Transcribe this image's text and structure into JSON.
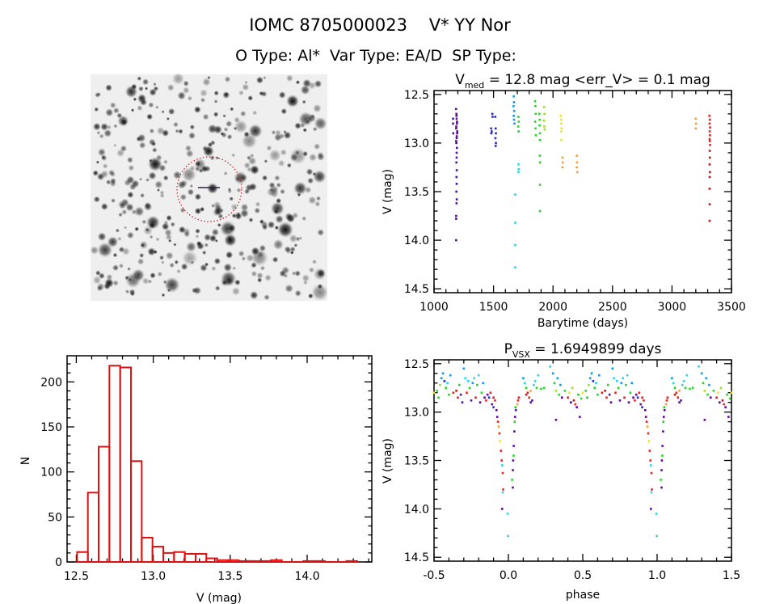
{
  "header": {
    "title_line1": "IOMC 8705000023    V* YY Nor",
    "title_line2": "O Type: Al*  Var Type: EA/D  SP Type:"
  },
  "image_panel": {
    "type": "sky-finder-chart",
    "colormap": "inverted-grayscale",
    "marker": "red-dotted-circle"
  },
  "palette": [
    "#5a0a9a",
    "#2a2ac0",
    "#1496e6",
    "#30d2e0",
    "#2cd02c",
    "#9ce01e",
    "#f0e020",
    "#f0a030",
    "#e82020",
    "#b81818"
  ],
  "chart_data": [
    {
      "type": "scatter",
      "title_main": "V",
      "title_sub": "med",
      "title_rest": " = 12.8 mag <err_V> = 0.1 mag",
      "xlabel": "Barytime (days)",
      "ylabel": "V (mag)",
      "xlim": [
        1000,
        3500
      ],
      "ylim": [
        14.54,
        12.46
      ],
      "y_inverted": true,
      "xticks": [
        "1000",
        "1500",
        "2000",
        "2500",
        "3000",
        "3500"
      ],
      "yticks": [
        "12.5",
        "13.0",
        "13.5",
        "14.0",
        "14.5"
      ],
      "grid": false,
      "points_t_v_color": [
        [
          1160,
          12.75,
          0
        ],
        [
          1160,
          12.8,
          0
        ],
        [
          1162,
          12.9,
          0
        ],
        [
          1185,
          12.65,
          0
        ],
        [
          1188,
          12.7,
          0
        ],
        [
          1190,
          12.75,
          0
        ],
        [
          1192,
          12.8,
          0
        ],
        [
          1186,
          12.85,
          0
        ],
        [
          1194,
          12.9,
          0
        ],
        [
          1190,
          12.95,
          0
        ],
        [
          1188,
          13.0,
          0
        ],
        [
          1192,
          13.05,
          0
        ],
        [
          1190,
          13.1,
          0
        ],
        [
          1189,
          12.72,
          0
        ],
        [
          1193,
          12.78,
          0
        ],
        [
          1187,
          12.83,
          0
        ],
        [
          1195,
          12.88,
          0
        ],
        [
          1191,
          12.93,
          0
        ],
        [
          1186,
          12.98,
          0
        ],
        [
          1190,
          13.15,
          0
        ],
        [
          1188,
          13.2,
          0
        ],
        [
          1191,
          13.28,
          0
        ],
        [
          1189,
          13.35,
          0
        ],
        [
          1190,
          13.42,
          0
        ],
        [
          1188,
          13.5,
          0
        ],
        [
          1191,
          13.58,
          0
        ],
        [
          1189,
          13.62,
          0
        ],
        [
          1186,
          13.75,
          0
        ],
        [
          1186,
          13.78,
          0
        ],
        [
          1186,
          14.0,
          0
        ],
        [
          1480,
          12.85,
          1
        ],
        [
          1482,
          12.9,
          1
        ],
        [
          1485,
          12.88,
          1
        ],
        [
          1490,
          12.7,
          1
        ],
        [
          1492,
          12.73,
          1
        ],
        [
          1515,
          12.73,
          1
        ],
        [
          1518,
          12.85,
          1
        ],
        [
          1520,
          12.9,
          1
        ],
        [
          1516,
          12.95,
          1
        ],
        [
          1520,
          13.0,
          1
        ],
        [
          1518,
          13.03,
          1
        ],
        [
          1670,
          12.52,
          2
        ],
        [
          1672,
          12.58,
          2
        ],
        [
          1668,
          12.62,
          2
        ],
        [
          1674,
          12.67,
          2
        ],
        [
          1670,
          12.72,
          2
        ],
        [
          1672,
          12.76,
          2
        ],
        [
          1676,
          12.8,
          2
        ],
        [
          1682,
          13.53,
          3
        ],
        [
          1682,
          13.82,
          3
        ],
        [
          1682,
          14.05,
          3
        ],
        [
          1682,
          14.28,
          3
        ],
        [
          1710,
          12.73,
          4
        ],
        [
          1712,
          12.78,
          4
        ],
        [
          1708,
          12.83,
          4
        ],
        [
          1711,
          12.88,
          4
        ],
        [
          1710,
          13.22,
          3
        ],
        [
          1712,
          13.27,
          3
        ],
        [
          1710,
          13.3,
          3
        ],
        [
          1850,
          12.57,
          4
        ],
        [
          1852,
          12.62,
          4
        ],
        [
          1855,
          12.7,
          4
        ],
        [
          1850,
          12.78,
          4
        ],
        [
          1853,
          12.85,
          4
        ],
        [
          1856,
          12.92,
          4
        ],
        [
          1885,
          12.7,
          4
        ],
        [
          1888,
          12.76,
          4
        ],
        [
          1887,
          12.82,
          4
        ],
        [
          1890,
          12.9,
          4
        ],
        [
          1890,
          12.97,
          4
        ],
        [
          1889,
          13.13,
          4
        ],
        [
          1891,
          13.2,
          4
        ],
        [
          1890,
          13.43,
          4
        ],
        [
          1890,
          13.7,
          4
        ],
        [
          1925,
          12.63,
          5
        ],
        [
          1928,
          12.7,
          5
        ],
        [
          1924,
          12.77,
          5
        ],
        [
          1927,
          12.83,
          5
        ],
        [
          1930,
          12.86,
          5
        ],
        [
          2065,
          12.72,
          6
        ],
        [
          2068,
          12.76,
          6
        ],
        [
          2070,
          12.8,
          6
        ],
        [
          2072,
          12.85,
          6
        ],
        [
          2068,
          12.88,
          6
        ],
        [
          2070,
          12.97,
          6
        ],
        [
          2080,
          13.15,
          7
        ],
        [
          2082,
          13.2,
          7
        ],
        [
          2080,
          13.25,
          7
        ],
        [
          2200,
          13.13,
          7
        ],
        [
          2202,
          13.2,
          7
        ],
        [
          2200,
          13.25,
          7
        ],
        [
          2204,
          13.3,
          7
        ],
        [
          3200,
          12.75,
          7
        ],
        [
          3202,
          12.8,
          7
        ],
        [
          3200,
          12.85,
          7
        ],
        [
          3315,
          12.72,
          8
        ],
        [
          3318,
          12.76,
          8
        ],
        [
          3316,
          12.8,
          8
        ],
        [
          3320,
          12.84,
          8
        ],
        [
          3317,
          12.88,
          8
        ],
        [
          3319,
          12.92,
          8
        ],
        [
          3316,
          12.96,
          8
        ],
        [
          3318,
          12.98,
          8
        ],
        [
          3320,
          13.02,
          8
        ],
        [
          3317,
          13.08,
          9
        ],
        [
          3318,
          13.15,
          9
        ],
        [
          3316,
          13.22,
          9
        ],
        [
          3319,
          13.3,
          9
        ],
        [
          3317,
          13.35,
          9
        ],
        [
          3316,
          13.47,
          9
        ],
        [
          3317,
          13.63,
          9
        ],
        [
          3316,
          13.8,
          9
        ]
      ]
    },
    {
      "type": "bar",
      "subtype": "histogram",
      "xlabel": "V (mag)",
      "ylabel": "N",
      "xlim": [
        12.44,
        14.42
      ],
      "ylim": [
        0,
        229
      ],
      "xticks": [
        "12.5",
        "13.0",
        "13.5",
        "14.0"
      ],
      "yticks": [
        "0",
        "50",
        "100",
        "150",
        "200"
      ],
      "bin_start": 12.505,
      "bin_width": 0.07,
      "counts": [
        11,
        77,
        128,
        218,
        216,
        112,
        27,
        17,
        10,
        11,
        9,
        9,
        4,
        2,
        2,
        1,
        1,
        1,
        2,
        0,
        0,
        1,
        1,
        0,
        0,
        1
      ],
      "color": "#dd1111",
      "grid": false
    },
    {
      "type": "scatter",
      "title_main": "P",
      "title_sub": "VSX",
      "title_rest": " = 1.6949899 days",
      "xlabel": "phase",
      "ylabel": "V (mag)",
      "xlim": [
        -0.5,
        1.5
      ],
      "ylim": [
        14.54,
        12.46
      ],
      "y_inverted": true,
      "xticks": [
        "-0.5",
        "0.0",
        "0.5",
        "1.0",
        "1.5"
      ],
      "yticks": [
        "12.5",
        "13.0",
        "13.5",
        "14.0",
        "14.5"
      ],
      "period_days": 1.6949899,
      "grid": false,
      "phase_v_color": [
        [
          0.92,
          12.98,
          0
        ],
        [
          0.925,
          13.05,
          0
        ],
        [
          0.93,
          13.1,
          8
        ],
        [
          0.935,
          13.15,
          7
        ],
        [
          0.94,
          13.22,
          8
        ],
        [
          0.945,
          13.3,
          6
        ],
        [
          0.95,
          13.4,
          8
        ],
        [
          0.955,
          13.5,
          8
        ],
        [
          0.958,
          13.55,
          3
        ],
        [
          0.962,
          13.63,
          8
        ],
        [
          0.965,
          13.8,
          8
        ],
        [
          0.962,
          13.83,
          3
        ],
        [
          0.958,
          14.0,
          0
        ],
        [
          0.995,
          14.05,
          3
        ],
        [
          0.998,
          14.28,
          3
        ],
        [
          0.03,
          13.78,
          0
        ],
        [
          0.025,
          13.7,
          4
        ],
        [
          0.03,
          13.6,
          0
        ],
        [
          0.032,
          13.5,
          0
        ],
        [
          0.035,
          13.45,
          4
        ],
        [
          0.036,
          13.35,
          0
        ],
        [
          0.04,
          13.2,
          0
        ],
        [
          0.042,
          13.1,
          4
        ],
        [
          0.045,
          13.05,
          0
        ],
        [
          0.05,
          12.98,
          0
        ],
        [
          0.048,
          12.95,
          4
        ],
        [
          0.06,
          12.92,
          7
        ],
        [
          0.065,
          12.88,
          8
        ],
        [
          0.07,
          12.85,
          8
        ],
        [
          0.1,
          12.65,
          2
        ],
        [
          0.11,
          12.7,
          3
        ],
        [
          0.12,
          12.75,
          4
        ],
        [
          0.13,
          12.8,
          8
        ],
        [
          0.14,
          12.85,
          8
        ],
        [
          0.15,
          12.78,
          7
        ],
        [
          0.16,
          12.88,
          0
        ],
        [
          0.17,
          12.72,
          3
        ],
        [
          0.18,
          12.68,
          3
        ],
        [
          0.19,
          12.75,
          4
        ],
        [
          0.2,
          12.62,
          3
        ],
        [
          0.22,
          12.76,
          4
        ],
        [
          0.24,
          12.75,
          4
        ],
        [
          0.15,
          12.9,
          0
        ],
        [
          0.12,
          12.82,
          9
        ],
        [
          0.28,
          12.53,
          3
        ],
        [
          0.3,
          12.6,
          2
        ],
        [
          0.31,
          12.7,
          4
        ],
        [
          0.32,
          12.78,
          5
        ],
        [
          0.33,
          12.65,
          2
        ],
        [
          0.32,
          13.08,
          0
        ],
        [
          0.34,
          12.82,
          4
        ],
        [
          0.35,
          12.72,
          2
        ],
        [
          0.36,
          12.85,
          0
        ],
        [
          0.38,
          12.78,
          4
        ],
        [
          0.4,
          12.85,
          8
        ],
        [
          0.41,
          12.8,
          6
        ],
        [
          0.42,
          12.9,
          0
        ],
        [
          0.43,
          12.75,
          5
        ],
        [
          0.44,
          12.88,
          9
        ],
        [
          0.45,
          12.92,
          8
        ],
        [
          0.46,
          12.95,
          0
        ],
        [
          0.47,
          12.82,
          4
        ],
        [
          0.48,
          13.05,
          0
        ],
        [
          0.49,
          12.86,
          4
        ],
        [
          0.5,
          12.8,
          6
        ],
        [
          0.52,
          12.78,
          4
        ],
        [
          0.53,
          12.85,
          4
        ],
        [
          0.54,
          12.72,
          5
        ],
        [
          0.55,
          12.65,
          2
        ],
        [
          0.56,
          12.6,
          2
        ],
        [
          0.57,
          12.68,
          1
        ],
        [
          0.58,
          12.75,
          4
        ],
        [
          0.59,
          12.7,
          3
        ],
        [
          0.6,
          12.82,
          4
        ],
        [
          0.61,
          12.62,
          2
        ],
        [
          0.63,
          12.8,
          8
        ],
        [
          0.65,
          12.78,
          9
        ],
        [
          0.66,
          12.85,
          8
        ],
        [
          0.67,
          12.72,
          4
        ],
        [
          0.68,
          12.82,
          0
        ],
        [
          0.69,
          12.9,
          0
        ],
        [
          0.7,
          12.55,
          2
        ],
        [
          0.71,
          12.65,
          3
        ],
        [
          0.72,
          12.8,
          8
        ],
        [
          0.73,
          12.68,
          3
        ],
        [
          0.74,
          12.75,
          4
        ],
        [
          0.75,
          12.88,
          0
        ],
        [
          0.76,
          12.7,
          2
        ],
        [
          0.77,
          12.65,
          3
        ],
        [
          0.78,
          12.85,
          8
        ],
        [
          0.79,
          12.72,
          4
        ],
        [
          0.8,
          12.62,
          3
        ],
        [
          0.81,
          12.9,
          0
        ],
        [
          0.82,
          12.8,
          4
        ],
        [
          0.83,
          12.7,
          2
        ],
        [
          0.84,
          12.85,
          0
        ],
        [
          0.85,
          12.88,
          8
        ],
        [
          0.86,
          12.82,
          0
        ],
        [
          0.87,
          12.85,
          1
        ],
        [
          0.88,
          12.8,
          8
        ],
        [
          0.89,
          12.92,
          0
        ],
        [
          0.9,
          12.95,
          1
        ],
        [
          0.9,
          12.85,
          8
        ],
        [
          0.91,
          12.88,
          8
        ]
      ]
    }
  ]
}
